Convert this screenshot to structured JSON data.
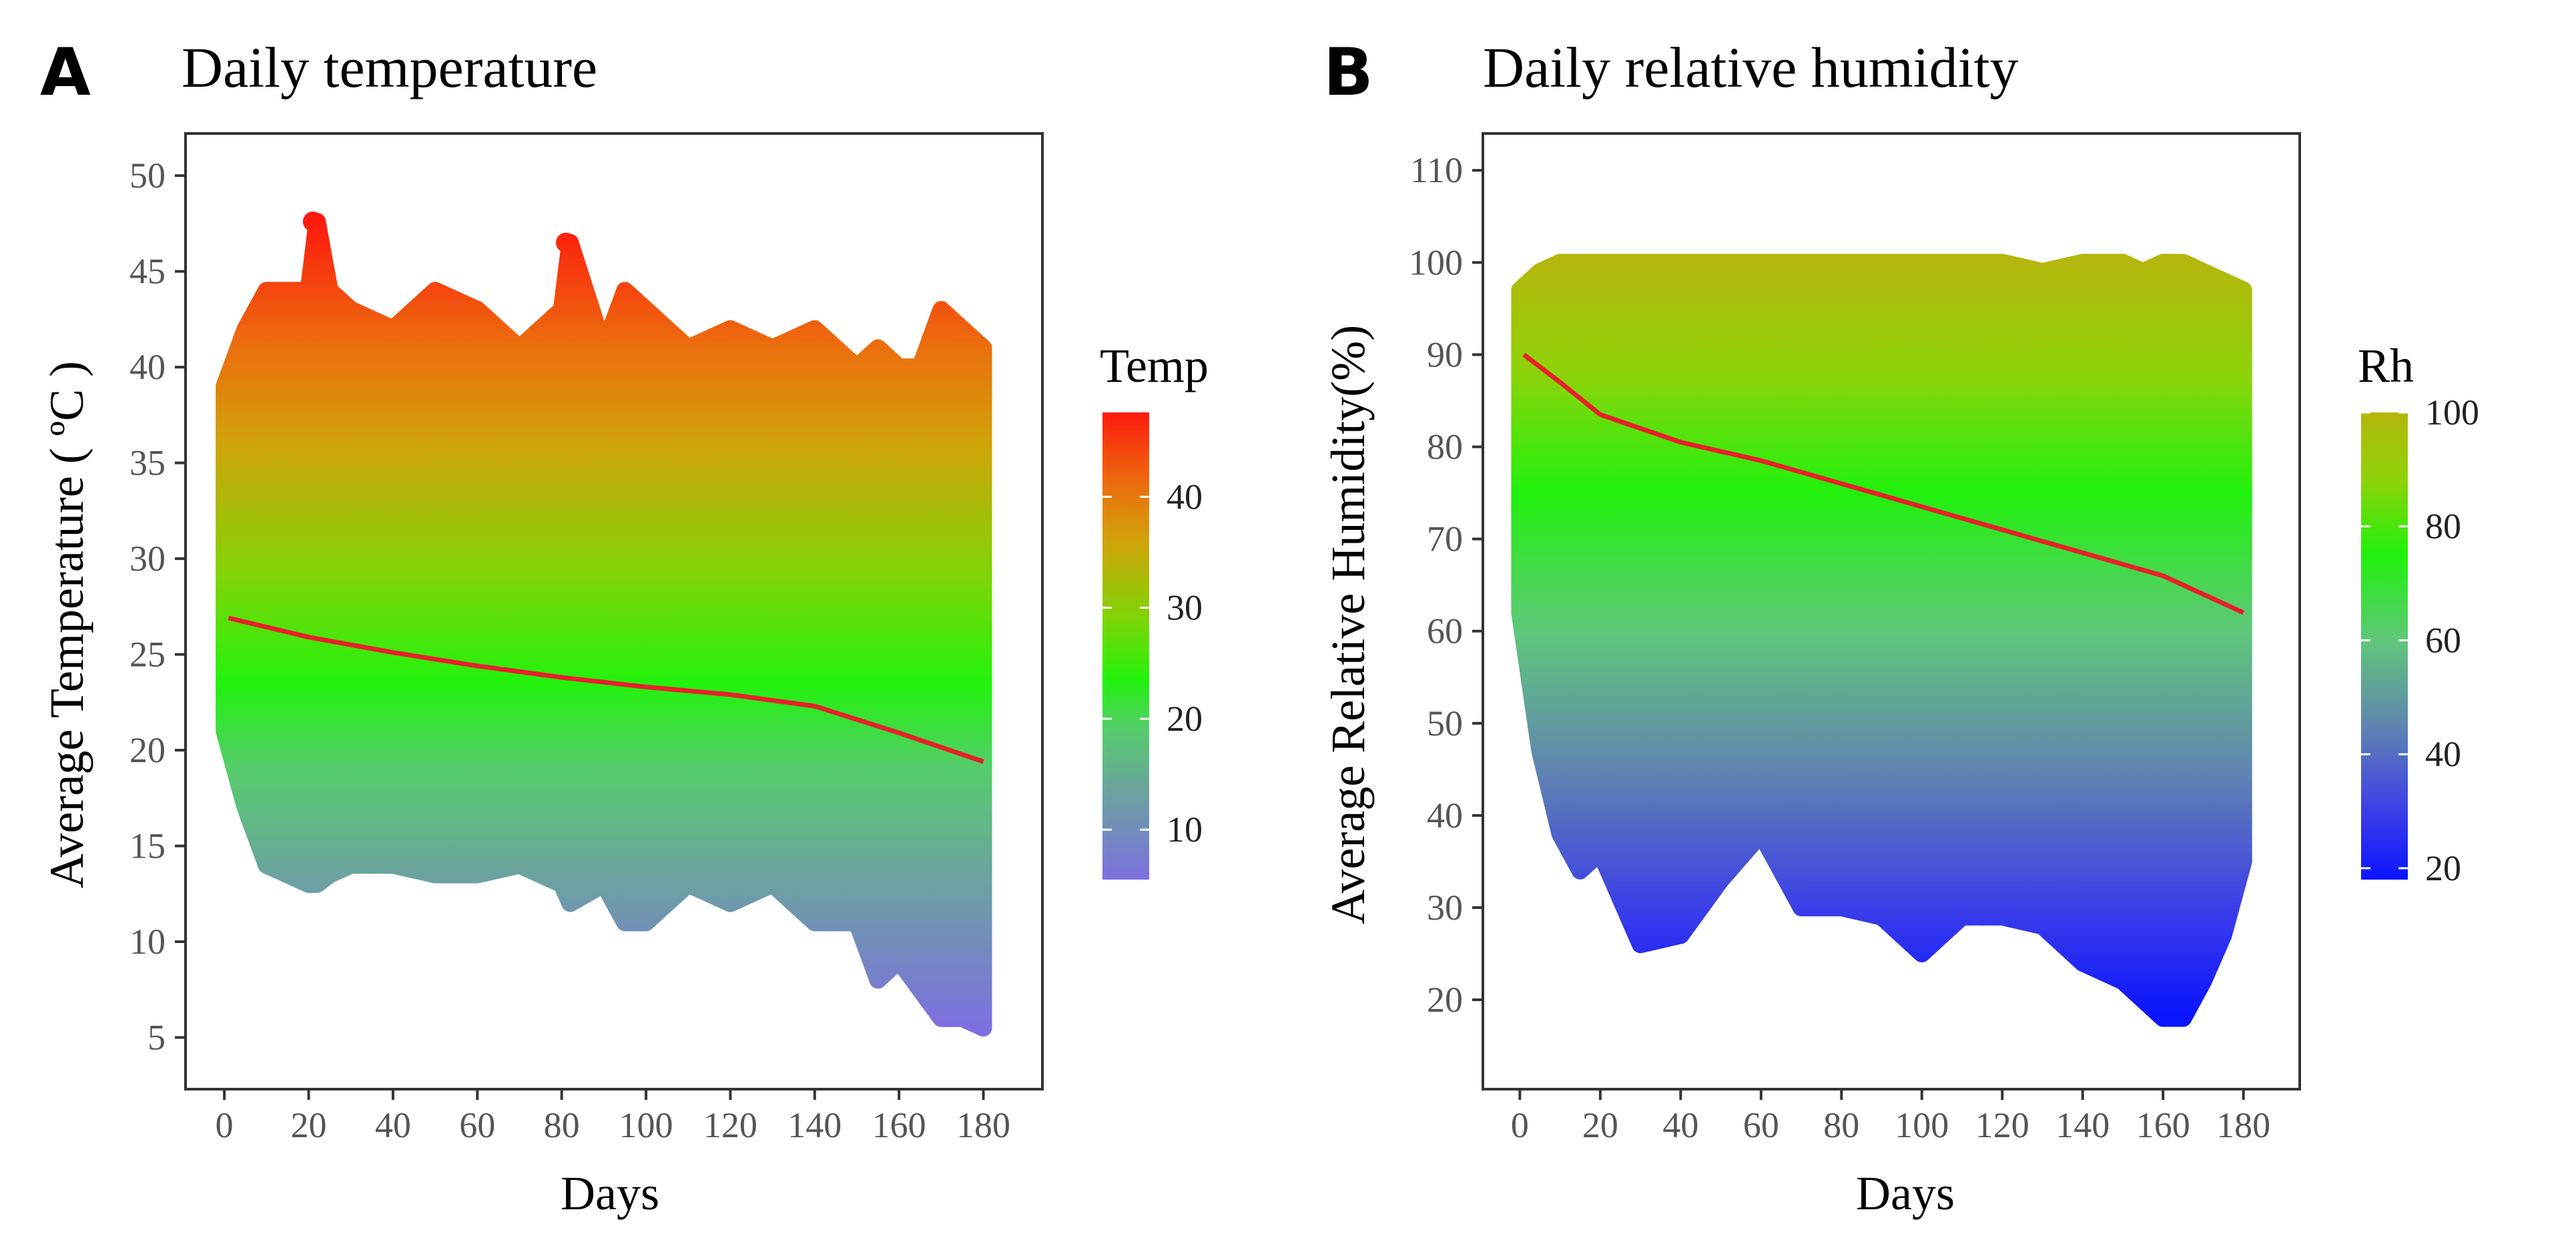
{
  "chart_data": [
    {
      "panel": "A",
      "type": "scatter",
      "title": "Daily temperature",
      "xlabel": "Days",
      "ylabel": "Average Temperature ( ºC )",
      "xlim": [
        -9.2,
        194
      ],
      "ylim": [
        2.3,
        52.2
      ],
      "xticks": [
        0,
        20,
        40,
        60,
        80,
        100,
        120,
        140,
        160,
        180
      ],
      "xtick_labels": [
        "0",
        "20",
        "40",
        "60",
        "80",
        "100",
        "120",
        "140",
        "160",
        "180"
      ],
      "yticks": [
        5,
        10,
        15,
        20,
        25,
        30,
        35,
        40,
        45,
        50
      ],
      "ytick_labels": [
        "5",
        "10",
        "15",
        "20",
        "25",
        "30",
        "35",
        "40",
        "45",
        "50"
      ],
      "grid": false,
      "legend": {
        "title": "Temp",
        "position": "right",
        "range": [
          5.5,
          47.6
        ],
        "ticks": [
          10,
          20,
          30,
          40
        ],
        "tick_labels": [
          "10",
          "20",
          "30",
          "40"
        ],
        "color_stops": [
          {
            "value": 5.5,
            "color": "#7d6fe0"
          },
          {
            "value": 14,
            "color": "#6aa79a"
          },
          {
            "value": 19,
            "color": "#55cc6c"
          },
          {
            "value": 23.5,
            "color": "#22f20c"
          },
          {
            "value": 29,
            "color": "#7fd507"
          },
          {
            "value": 36,
            "color": "#d0a309"
          },
          {
            "value": 41,
            "color": "#eb6f0e"
          },
          {
            "value": 47.6,
            "color": "#ff1a0e"
          }
        ]
      },
      "scatter_envelope": {
        "days": [
          0,
          5,
          10,
          15,
          20,
          22,
          25,
          30,
          40,
          50,
          60,
          70,
          80,
          82,
          90,
          95,
          100,
          110,
          120,
          130,
          140,
          150,
          155,
          160,
          165,
          170,
          175,
          180
        ],
        "max": [
          39,
          42,
          44,
          44,
          44,
          47.6,
          44,
          43,
          42,
          44,
          43,
          41,
          43,
          46.5,
          41,
          44,
          43,
          41,
          42,
          41,
          42,
          40,
          41,
          40,
          40,
          43,
          42,
          41
        ],
        "min": [
          21,
          17,
          14,
          13.5,
          13,
          13,
          13.5,
          14,
          14,
          13.5,
          13.5,
          14,
          13,
          12,
          13,
          11,
          11,
          13,
          12,
          13,
          11,
          11,
          8,
          9,
          7.5,
          6,
          6,
          5.5
        ],
        "isolated_points": [
          {
            "day": 21,
            "value": 47.6
          },
          {
            "day": 81,
            "value": 46.5
          }
        ]
      },
      "trend_line": {
        "color": "#e8202a",
        "x": [
          1,
          20,
          40,
          60,
          80,
          100,
          120,
          140,
          160,
          180
        ],
        "y": [
          26.9,
          25.9,
          25.1,
          24.4,
          23.8,
          23.3,
          22.9,
          22.3,
          20.9,
          19.4
        ]
      }
    },
    {
      "panel": "B",
      "type": "scatter",
      "title": "Daily relative humidity",
      "xlabel": "Days",
      "ylabel": "Average Relative Humidity(%)",
      "xlim": [
        -9.2,
        194
      ],
      "ylim": [
        10.3,
        114
      ],
      "xticks": [
        0,
        20,
        40,
        60,
        80,
        100,
        120,
        140,
        160,
        180
      ],
      "xtick_labels": [
        "0",
        "20",
        "40",
        "60",
        "80",
        "100",
        "120",
        "140",
        "160",
        "180"
      ],
      "yticks": [
        20,
        30,
        40,
        50,
        60,
        70,
        80,
        90,
        100,
        110
      ],
      "ytick_labels": [
        "20",
        "30",
        "40",
        "50",
        "60",
        "70",
        "80",
        "90",
        "100",
        "110"
      ],
      "grid": false,
      "legend": {
        "title": "Rh",
        "position": "right",
        "range": [
          18,
          100
        ],
        "ticks": [
          20,
          40,
          60,
          80,
          100
        ],
        "tick_labels": [
          "20",
          "40",
          "60",
          "80",
          "100"
        ],
        "color_stops": [
          {
            "value": 18,
            "color": "#0a14ff"
          },
          {
            "value": 30,
            "color": "#3c3ee8"
          },
          {
            "value": 45,
            "color": "#6085b0"
          },
          {
            "value": 60,
            "color": "#5fc77a"
          },
          {
            "value": 75,
            "color": "#20f10c"
          },
          {
            "value": 88,
            "color": "#8ed30a"
          },
          {
            "value": 100,
            "color": "#b4b70c"
          }
        ]
      },
      "scatter_envelope": {
        "days": [
          0,
          5,
          10,
          15,
          20,
          30,
          40,
          50,
          60,
          70,
          80,
          90,
          100,
          110,
          120,
          130,
          140,
          150,
          155,
          160,
          165,
          170,
          175,
          180
        ],
        "max": [
          97,
          99,
          100,
          100,
          100,
          100,
          100,
          100,
          100,
          100,
          100,
          100,
          100,
          100,
          100,
          99,
          100,
          100,
          99,
          100,
          100,
          99,
          98,
          97
        ],
        "min": [
          62,
          47,
          38,
          34,
          36,
          26,
          27,
          33,
          38,
          30,
          30,
          29,
          25,
          29,
          29,
          28,
          24,
          22,
          20,
          18,
          18,
          22,
          27,
          35
        ],
        "isolated_points": []
      },
      "trend_line": {
        "color": "#e8202a",
        "x": [
          1,
          10,
          20,
          40,
          60,
          80,
          100,
          120,
          140,
          160,
          180
        ],
        "y": [
          90,
          87,
          83.5,
          80.5,
          78.5,
          76,
          73.5,
          71,
          68.5,
          66,
          62
        ]
      }
    }
  ]
}
